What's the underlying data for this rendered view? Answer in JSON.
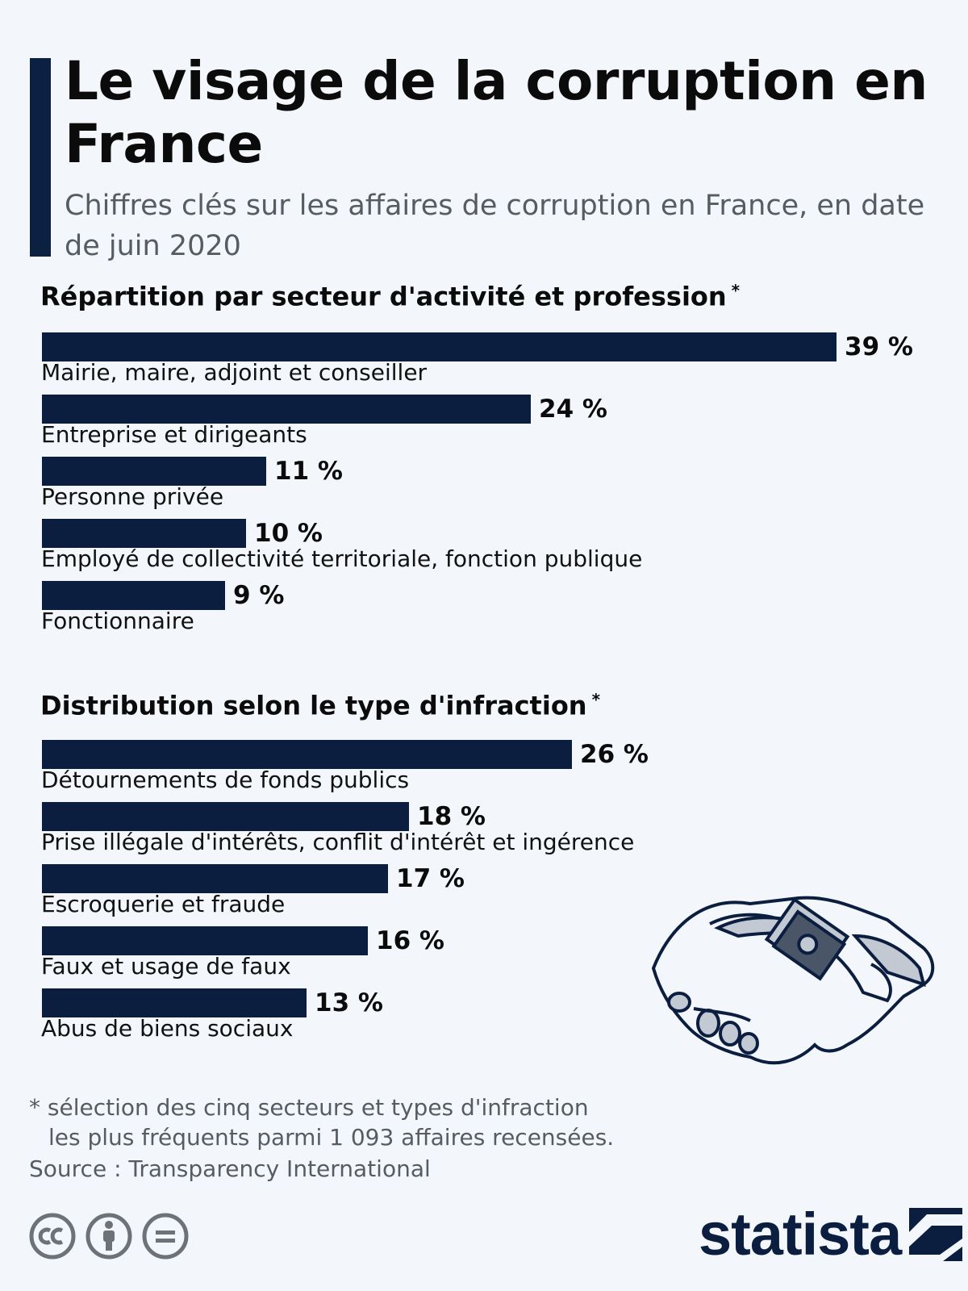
{
  "title": "Le visage de la corruption en France",
  "subtitle": "Chiffres clés sur les affaires de corruption en France, en date de juin 2020",
  "chart_data": [
    {
      "type": "bar",
      "orientation": "horizontal",
      "title": "Répartition par secteur d'activité et profession",
      "title_marker": "*",
      "categories": [
        "Mairie, maire, adjoint et conseiller",
        "Entreprise et dirigeants",
        "Personne privée",
        "Employé de collectivité territoriale, fonction publique",
        "Fonctionnaire"
      ],
      "values": [
        39,
        24,
        11,
        10,
        9
      ],
      "value_labels": [
        "39 %",
        "24 %",
        "11 %",
        "10 %",
        "9 %"
      ],
      "unit": "%",
      "xlim": [
        0,
        39
      ],
      "color": "#0c1e40"
    },
    {
      "type": "bar",
      "orientation": "horizontal",
      "title": "Distribution selon le type d'infraction",
      "title_marker": "*",
      "categories": [
        "Détournements de fonds publics",
        "Prise illégale d'intérêts, conflit d'intérêt et ingérence",
        "Escroquerie et fraude",
        "Faux et usage de faux",
        "Abus de biens sociaux"
      ],
      "values": [
        26,
        18,
        17,
        16,
        13
      ],
      "value_labels": [
        "26 %",
        "18 %",
        "17 %",
        "16 %",
        "13 %"
      ],
      "unit": "%",
      "xlim": [
        0,
        39
      ],
      "color": "#0c1e40"
    }
  ],
  "footnote": {
    "line1": "* sélection des cinq secteurs et types d'infraction",
    "line2": "les plus fréquents parmi 1 093 affaires recensées."
  },
  "source": "Source : Transparency International",
  "icons": [
    "handshake-illustration",
    "creative-commons-icon",
    "attribution-icon",
    "no-derivatives-icon",
    "statista-logo"
  ],
  "brand": "statista",
  "colors": {
    "background": "#f3f7fb",
    "bar": "#0c1e40",
    "accent": "#0c2042",
    "muted_text": "#555c63"
  }
}
